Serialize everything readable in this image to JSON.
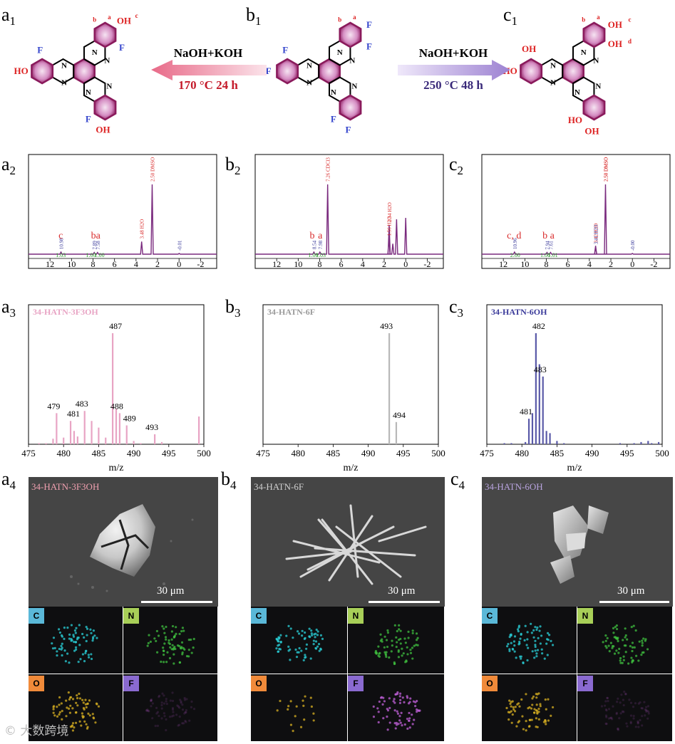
{
  "panel_labels": {
    "a1": {
      "l": "a",
      "s": "1"
    },
    "b1": {
      "l": "b",
      "s": "1"
    },
    "c1": {
      "l": "c",
      "s": "1"
    },
    "a2": {
      "l": "a",
      "s": "2"
    },
    "b2": {
      "l": "b",
      "s": "2"
    },
    "c2": {
      "l": "c",
      "s": "2"
    },
    "a3": {
      "l": "a",
      "s": "3"
    },
    "b3": {
      "l": "b",
      "s": "3"
    },
    "c3": {
      "l": "c",
      "s": "3"
    },
    "a4": {
      "l": "a",
      "s": "4"
    },
    "b4": {
      "l": "b",
      "s": "4"
    },
    "c4": {
      "l": "c",
      "s": "4"
    }
  },
  "reactions": {
    "left": {
      "reagent": "NaOH+KOH",
      "conditions": "170 °C  24 h",
      "arrow_color": "#e88a9c"
    },
    "right": {
      "reagent": "NaOH+KOH",
      "conditions": "250 °C  48 h",
      "arrow_color": "#a98fd6"
    }
  },
  "molecules": {
    "a1": {
      "labels": {
        "F1": "F",
        "F2": "F",
        "F3": "F",
        "OH1": "OH",
        "OH2": "OH",
        "OH3": "HO",
        "h": "b",
        "a": "a",
        "c": "c"
      }
    },
    "b1": {
      "labels": {
        "F1": "F",
        "F2": "F",
        "F3": "F",
        "F4": "F",
        "F5": "F",
        "F6": "F",
        "h": "b",
        "a": "a"
      }
    },
    "c1": {
      "labels": {
        "OH1": "OH",
        "OH2": "OH",
        "OH3": "OH",
        "OH4": "HO",
        "OH5": "HO",
        "OH6": "OH",
        "h": "b",
        "a": "a",
        "c": "c",
        "d": "d"
      }
    },
    "colors": {
      "ring": "#8a1a5c",
      "fluorine": "#3344cc",
      "hydroxyl": "#dd2222",
      "nitrogen": "#000000"
    }
  },
  "chart_data": [
    {
      "type": "line",
      "id": "a2",
      "title": "",
      "xlabel": "",
      "ylabel": "",
      "xlim": [
        14,
        -3.5
      ],
      "x_ticks": [
        12,
        10,
        8,
        6,
        4,
        2,
        0,
        -2
      ],
      "color": "#7a2a7e",
      "peaks": [
        {
          "x": 10.98,
          "h": 0.03,
          "label": "10.98"
        },
        {
          "x": 7.89,
          "h": 0.025,
          "label": "7.89"
        },
        {
          "x": 7.58,
          "h": 0.025,
          "label": "7.58"
        },
        {
          "x": 3.48,
          "h": 0.18,
          "label": "3.48 H2O"
        },
        {
          "x": 2.5,
          "h": 1.0,
          "label": "2.50 DMSO"
        },
        {
          "x": -0.01,
          "h": 0.01,
          "label": "-0.01"
        }
      ],
      "proton_labels": [
        {
          "x": 11.0,
          "text": "c"
        },
        {
          "x": 7.75,
          "text": "ba"
        }
      ],
      "integrals": [
        {
          "x": 11.0,
          "text": "1.03"
        },
        {
          "x": 8.2,
          "text": "1.00"
        },
        {
          "x": 7.4,
          "text": "1.00"
        }
      ]
    },
    {
      "type": "line",
      "id": "b2",
      "title": "",
      "xlabel": "",
      "ylabel": "",
      "xlim": [
        14,
        -3.5
      ],
      "x_ticks": [
        12,
        10,
        8,
        6,
        4,
        2,
        0,
        -2
      ],
      "color": "#7a2a7e",
      "peaks": [
        {
          "x": 8.54,
          "h": 0.03,
          "label": "8.54"
        },
        {
          "x": 7.98,
          "h": 0.03,
          "label": "7.98"
        },
        {
          "x": 7.26,
          "h": 1.0,
          "label": "7.26 CDCl3"
        },
        {
          "x": 1.56,
          "h": 0.22,
          "label": "1.56 H2O"
        },
        {
          "x": 1.54,
          "h": 0.42,
          "label": "1.54 H2O"
        },
        {
          "x": 1.2,
          "h": 0.15,
          "label": ""
        },
        {
          "x": 0.85,
          "h": 0.5,
          "label": ""
        },
        {
          "x": 0.0,
          "h": 0.52,
          "label": ""
        }
      ],
      "proton_labels": [
        {
          "x": 8.7,
          "text": "b"
        },
        {
          "x": 7.95,
          "text": "a"
        }
      ],
      "integrals": [
        {
          "x": 8.6,
          "text": "1.00"
        },
        {
          "x": 7.9,
          "text": "1.03"
        }
      ]
    },
    {
      "type": "line",
      "id": "c2",
      "title": "",
      "xlabel": "",
      "ylabel": "",
      "xlim": [
        14,
        -3.5
      ],
      "x_ticks": [
        12,
        10,
        8,
        6,
        4,
        2,
        0,
        -2
      ],
      "color": "#7a2a7e",
      "peaks": [
        {
          "x": 10.96,
          "h": 0.03,
          "label": "10.96"
        },
        {
          "x": 7.94,
          "h": 0.025,
          "label": "7.94"
        },
        {
          "x": 7.61,
          "h": 0.025,
          "label": "7.61"
        },
        {
          "x": 3.42,
          "h": 0.12,
          "label": "3.42 H2O"
        },
        {
          "x": 3.41,
          "h": 0.1,
          "label": "3.41 H2O"
        },
        {
          "x": 2.5,
          "h": 1.0,
          "label": "2.50 DMSO"
        },
        {
          "x": 2.5,
          "h": 1.0,
          "label": "2.50 DMSO"
        },
        {
          "x": -0.0,
          "h": 0.01,
          "label": "-0.00"
        }
      ],
      "proton_labels": [
        {
          "x": 11.0,
          "text": "c, d"
        },
        {
          "x": 7.8,
          "text": "b a"
        }
      ],
      "integrals": [
        {
          "x": 10.9,
          "text": "2.00"
        },
        {
          "x": 8.1,
          "text": "1.00"
        },
        {
          "x": 7.4,
          "text": "1.01"
        }
      ]
    },
    {
      "type": "bar",
      "id": "a3",
      "title": "34-HATN-3F3OH",
      "xlabel": "m/z",
      "ylabel": "",
      "xlim": [
        475,
        500
      ],
      "x_ticks": [
        475,
        480,
        485,
        490,
        495,
        500
      ],
      "ylim": [
        0,
        1
      ],
      "color": "#e8a4c4",
      "title_color": "#e8a4c4",
      "peaks": [
        [
          476.5,
          0.01
        ],
        [
          477.5,
          0.01
        ],
        [
          478.5,
          0.05
        ],
        [
          479,
          0.28
        ],
        [
          480,
          0.06
        ],
        [
          481,
          0.21
        ],
        [
          481.5,
          0.12
        ],
        [
          482,
          0.07
        ],
        [
          483,
          0.3
        ],
        [
          484,
          0.21
        ],
        [
          485,
          0.15
        ],
        [
          486,
          0.06
        ],
        [
          487,
          1.0
        ],
        [
          487.5,
          0.32
        ],
        [
          488,
          0.28
        ],
        [
          489,
          0.17
        ],
        [
          490,
          0.03
        ],
        [
          491,
          0.01
        ],
        [
          493,
          0.09
        ],
        [
          494,
          0.02
        ],
        [
          499.3,
          0.25
        ]
      ],
      "labels": [
        {
          "x": 479,
          "text": "479"
        },
        {
          "x": 481,
          "text": "481"
        },
        {
          "x": 483,
          "text": "483"
        },
        {
          "x": 487,
          "text": "487"
        },
        {
          "x": 488,
          "text": "488"
        },
        {
          "x": 489,
          "text": "489"
        },
        {
          "x": 493,
          "text": "493"
        }
      ]
    },
    {
      "type": "bar",
      "id": "b3",
      "title": "34-HATN-6F",
      "xlabel": "m/z",
      "ylabel": "",
      "xlim": [
        475,
        500
      ],
      "x_ticks": [
        475,
        480,
        485,
        490,
        495,
        500
      ],
      "ylim": [
        0,
        1
      ],
      "color": "#b8b8b8",
      "title_color": "#9a9a9a",
      "peaks": [
        [
          493,
          1.0
        ],
        [
          494,
          0.2
        ]
      ],
      "labels": [
        {
          "x": 493,
          "text": "493"
        },
        {
          "x": 494,
          "text": "494"
        }
      ]
    },
    {
      "type": "bar",
      "id": "c3",
      "title": "34-HATN-6OH",
      "xlabel": "m/z",
      "ylabel": "",
      "xlim": [
        475,
        500
      ],
      "x_ticks": [
        475,
        480,
        485,
        490,
        495,
        500
      ],
      "ylim": [
        0,
        1
      ],
      "color": "#5a5aa8",
      "title_color": "#3a3a9a",
      "peaks": [
        [
          477.5,
          0.01
        ],
        [
          478.5,
          0.01
        ],
        [
          480.5,
          0.02
        ],
        [
          481,
          0.23
        ],
        [
          481.5,
          0.28
        ],
        [
          482,
          1.0
        ],
        [
          482.5,
          0.72
        ],
        [
          483,
          0.61
        ],
        [
          483.5,
          0.12
        ],
        [
          484,
          0.1
        ],
        [
          485,
          0.03
        ],
        [
          486,
          0.01
        ],
        [
          494,
          0.01
        ],
        [
          496,
          0.01
        ],
        [
          497,
          0.02
        ],
        [
          498,
          0.03
        ],
        [
          498.5,
          0.01
        ],
        [
          499.5,
          0.02
        ]
      ],
      "labels": [
        {
          "x": 481,
          "text": "481"
        },
        {
          "x": 482,
          "text": "482"
        },
        {
          "x": 483,
          "text": "483"
        }
      ]
    }
  ],
  "sem": [
    {
      "id": "a4",
      "title": "34-HATN-3F3OH",
      "title_color": "#f0a0b0",
      "scale": "30 μm"
    },
    {
      "id": "b4",
      "title": "34-HATN-6F",
      "title_color": "#d0d0d0",
      "scale": "30 μm"
    },
    {
      "id": "c4",
      "title": "34-HATN-6OH",
      "title_color": "#b9a4e0",
      "scale": "30 μm"
    }
  ],
  "eds": {
    "elements": [
      {
        "el": "C",
        "badge": "#5ab8d8",
        "map": "#2ad0d8"
      },
      {
        "el": "N",
        "badge": "#a8cf58",
        "map": "#3fbf3f"
      },
      {
        "el": "O",
        "badge": "#f08a3a",
        "map": "#d8b022"
      },
      {
        "el": "F",
        "badge": "#8a6ad0",
        "map": "#c060d8"
      }
    ]
  },
  "watermark": "大数跨境"
}
